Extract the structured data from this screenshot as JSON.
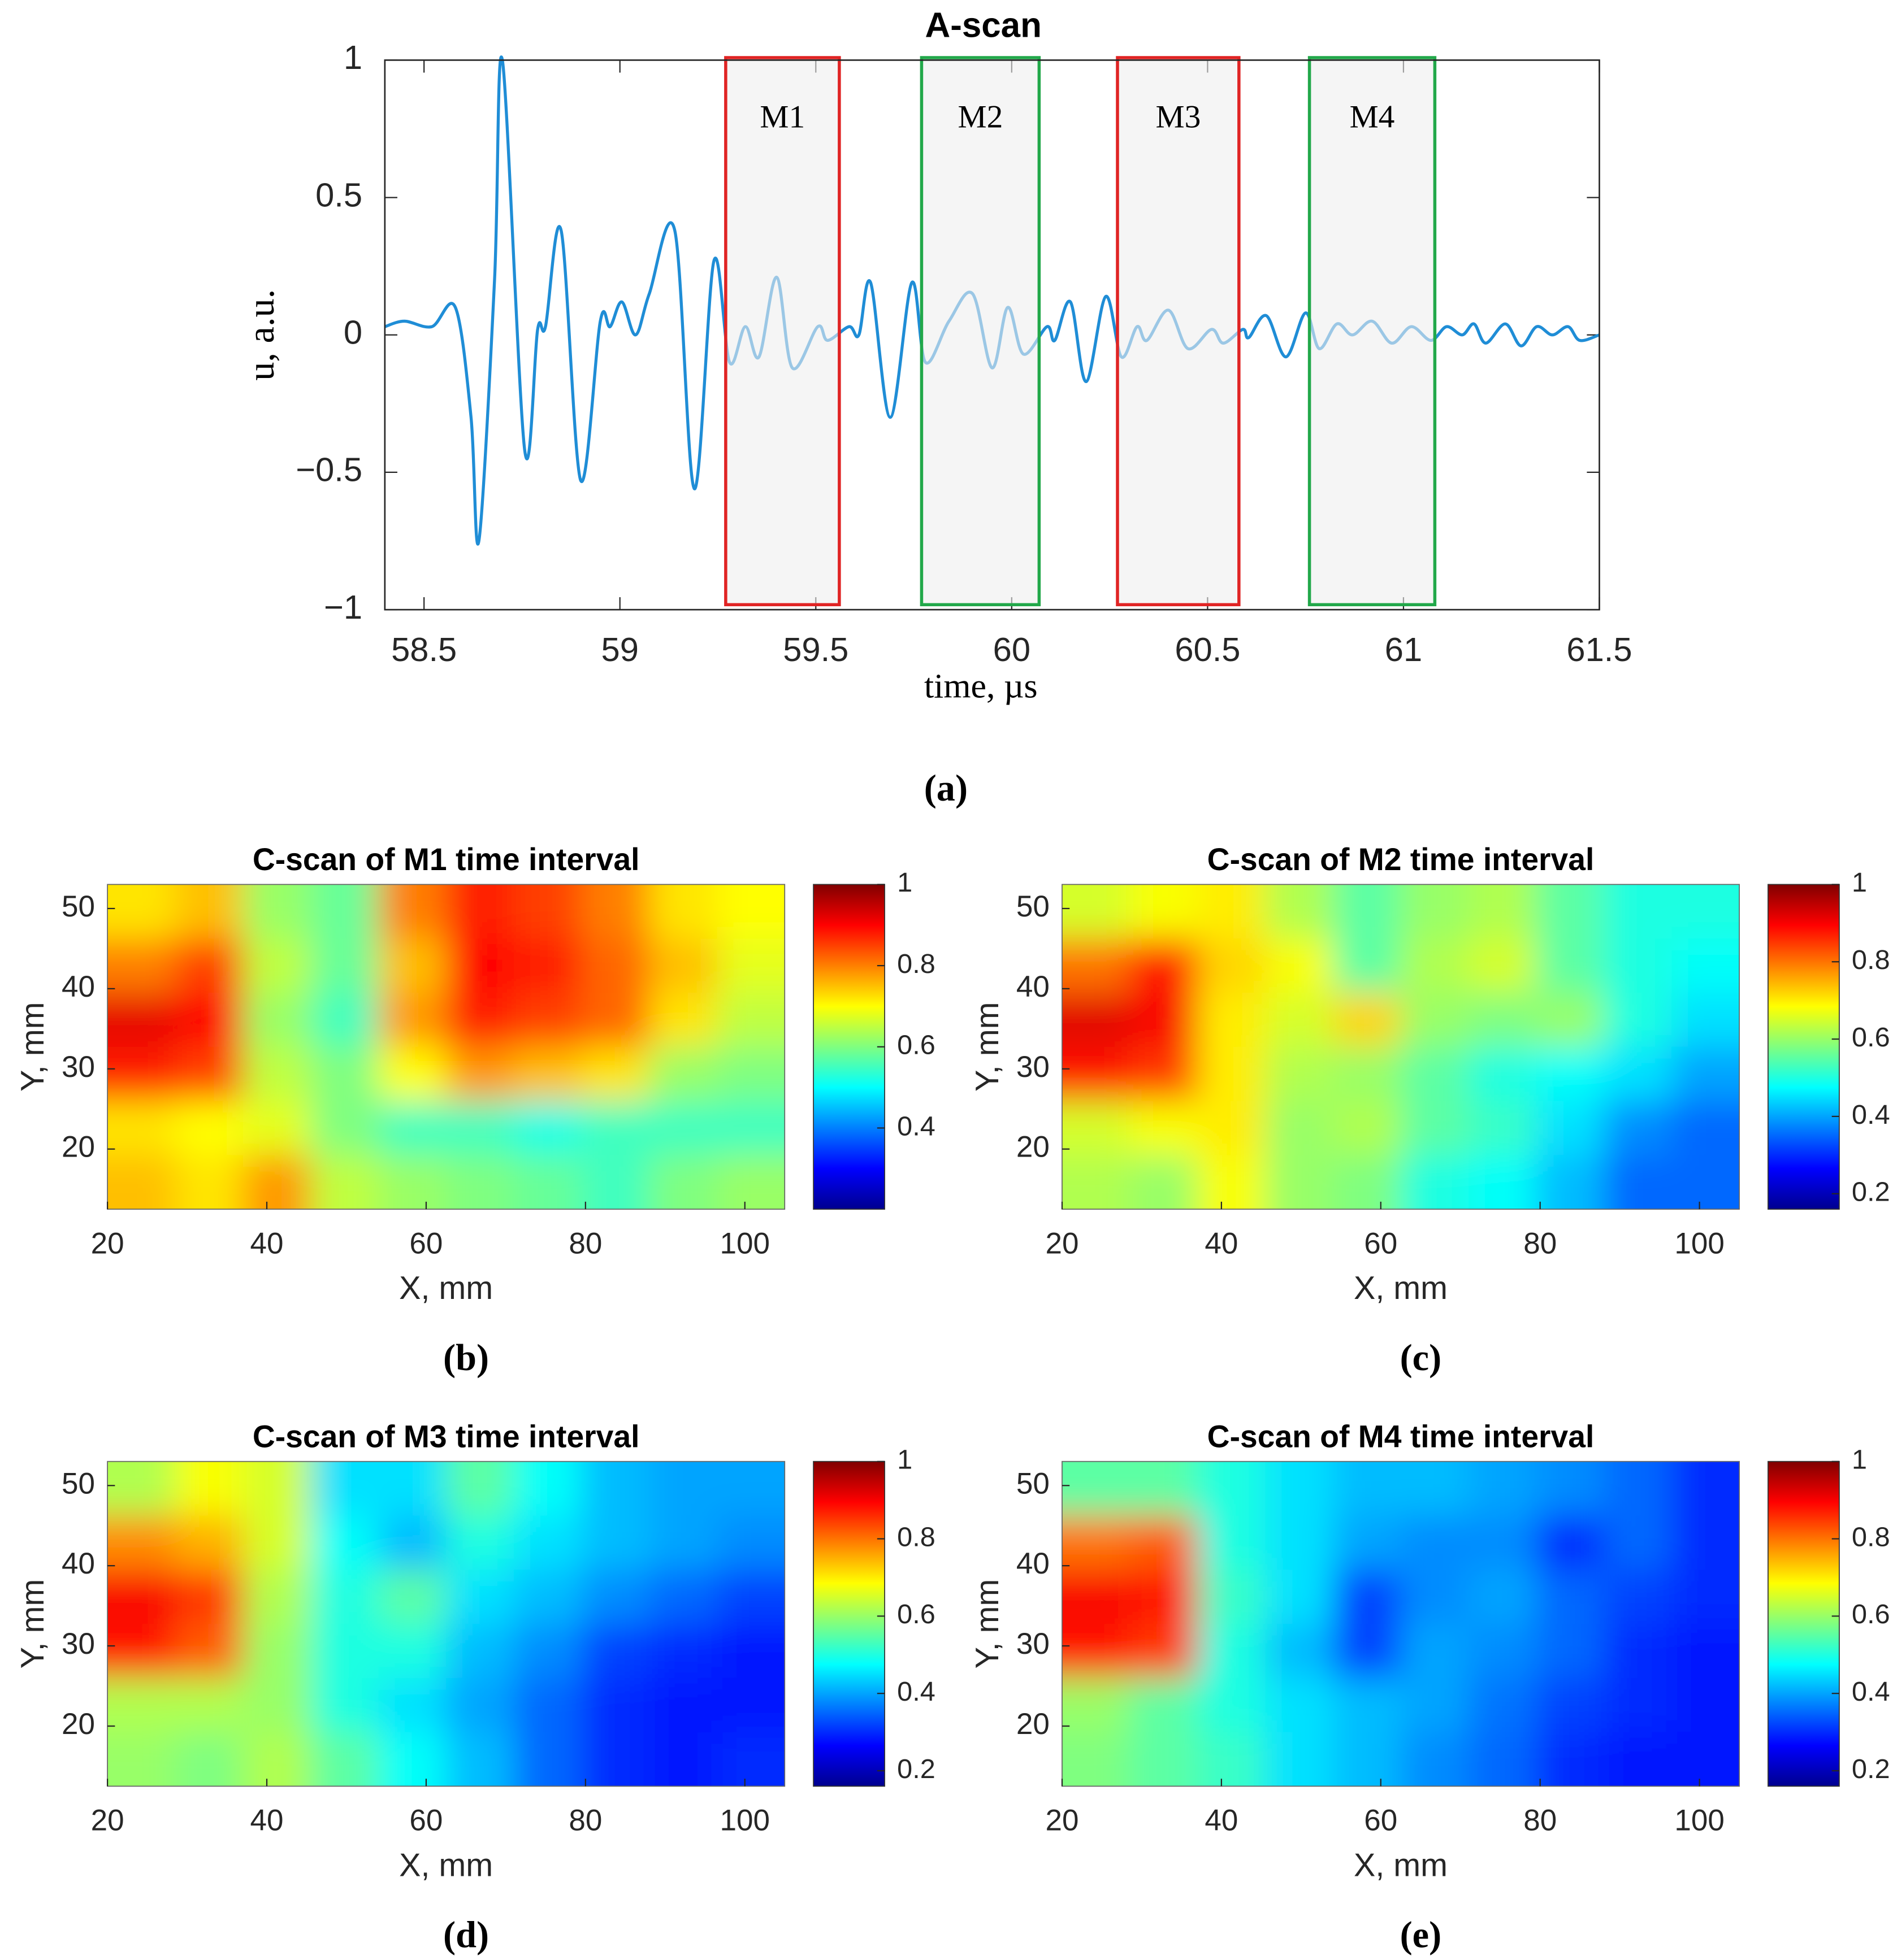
{
  "chart_data": [
    {
      "type": "line",
      "title": "A-scan",
      "label": "(a)",
      "xlabel": "time, µs",
      "ylabel": "u, a.u.",
      "color": "#1f8dd6",
      "xlim": [
        58.4,
        61.5
      ],
      "ylim": [
        -1,
        1
      ],
      "xticks": [
        58.5,
        59,
        59.5,
        60,
        60.5,
        61,
        61.5
      ],
      "yticks": [
        {
          "value": -1,
          "label": "−1"
        },
        {
          "value": -0.5,
          "label": "−0.5"
        },
        0,
        0.5,
        1
      ],
      "windows": [
        {
          "label": "M1",
          "x": [
            59.27,
            59.56
          ],
          "color": "#e02424"
        },
        {
          "label": "M2",
          "x": [
            59.77,
            60.07
          ],
          "color": "#22a84a"
        },
        {
          "label": "M3",
          "x": [
            60.27,
            60.58
          ],
          "color": "#e02424"
        },
        {
          "label": "M4",
          "x": [
            60.76,
            61.08
          ],
          "color": "#22a84a"
        }
      ],
      "x": [
        58.4,
        58.45,
        58.52,
        58.58,
        58.62,
        58.64,
        58.68,
        58.7,
        58.757,
        58.79,
        58.81,
        58.85,
        58.9,
        58.95,
        58.975,
        59.005,
        59.04,
        59.075,
        59.14,
        59.19,
        59.24,
        59.28,
        59.32,
        59.355,
        59.4,
        59.44,
        59.505,
        59.53,
        59.585,
        59.61,
        59.64,
        59.69,
        59.745,
        59.78,
        59.84,
        59.9,
        59.95,
        59.99,
        60.03,
        60.09,
        60.11,
        60.15,
        60.19,
        60.24,
        60.28,
        60.32,
        60.345,
        60.4,
        60.45,
        60.51,
        60.54,
        60.59,
        60.605,
        60.65,
        60.7,
        60.75,
        60.785,
        60.83,
        60.87,
        60.92,
        60.97,
        61.02,
        61.07,
        61.11,
        61.15,
        61.18,
        61.21,
        61.26,
        61.3,
        61.34,
        61.38,
        61.42,
        61.45,
        61.5
      ],
      "values": [
        0.03,
        0.05,
        0.03,
        0.1,
        -0.3,
        -0.75,
        0.2,
        1.0,
        -0.42,
        0.02,
        0.03,
        0.38,
        -0.53,
        0.05,
        0.03,
        0.12,
        0.0,
        0.15,
        0.38,
        -0.56,
        0.27,
        -0.1,
        0.03,
        -0.08,
        0.21,
        -0.12,
        0.03,
        -0.02,
        0.03,
        0.0,
        0.19,
        -0.3,
        0.19,
        -0.1,
        0.05,
        0.15,
        -0.12,
        0.1,
        -0.07,
        0.03,
        -0.02,
        0.12,
        -0.17,
        0.14,
        -0.08,
        0.03,
        -0.02,
        0.09,
        -0.05,
        0.02,
        -0.03,
        0.02,
        -0.01,
        0.07,
        -0.08,
        0.08,
        -0.05,
        0.04,
        0.0,
        0.05,
        -0.03,
        0.03,
        -0.02,
        0.03,
        0.0,
        0.04,
        -0.03,
        0.04,
        -0.04,
        0.03,
        0.0,
        0.03,
        -0.02,
        0.0
      ]
    },
    {
      "type": "heatmap",
      "title": "C-scan of M1 time interval",
      "label": "(b)",
      "xlabel": "X, mm",
      "ylabel": "Y, mm",
      "xlim": [
        20,
        105
      ],
      "ylim": [
        12.5,
        53
      ],
      "xticks": [
        20,
        40,
        60,
        80,
        100
      ],
      "yticks": [
        20,
        30,
        40,
        50
      ],
      "clim": [
        0.2,
        1
      ],
      "cticks": [
        0.4,
        0.6,
        0.8,
        1
      ],
      "z": [
        [
          0.72,
          0.75,
          0.62,
          0.58,
          0.8,
          0.88,
          0.85,
          0.8,
          0.72,
          0.7
        ],
        [
          0.8,
          0.85,
          0.65,
          0.58,
          0.75,
          0.9,
          0.88,
          0.82,
          0.75,
          0.68
        ],
        [
          0.92,
          0.9,
          0.62,
          0.55,
          0.78,
          0.88,
          0.85,
          0.82,
          0.72,
          0.65
        ],
        [
          0.88,
          0.85,
          0.65,
          0.6,
          0.7,
          0.78,
          0.75,
          0.72,
          0.62,
          0.6
        ],
        [
          0.72,
          0.7,
          0.68,
          0.6,
          0.55,
          0.55,
          0.52,
          0.55,
          0.55,
          0.55
        ],
        [
          0.75,
          0.72,
          0.78,
          0.65,
          0.62,
          0.6,
          0.58,
          0.55,
          0.6,
          0.62
        ]
      ]
    },
    {
      "type": "heatmap",
      "title": "C-scan of M2 time interval",
      "label": "(c)",
      "xlabel": "X, mm",
      "ylabel": "Y, mm",
      "xlim": [
        20,
        105
      ],
      "ylim": [
        12.5,
        53
      ],
      "xticks": [
        20,
        40,
        60,
        80,
        100
      ],
      "yticks": [
        20,
        30,
        40,
        50
      ],
      "clim": [
        0.16,
        1
      ],
      "cticks": [
        0.2,
        0.4,
        0.6,
        0.8,
        1
      ],
      "z": [
        [
          0.65,
          0.68,
          0.7,
          0.62,
          0.55,
          0.6,
          0.62,
          0.55,
          0.5,
          0.5
        ],
        [
          0.8,
          0.88,
          0.72,
          0.68,
          0.55,
          0.62,
          0.65,
          0.55,
          0.5,
          0.48
        ],
        [
          0.92,
          0.9,
          0.7,
          0.65,
          0.72,
          0.6,
          0.58,
          0.6,
          0.5,
          0.45
        ],
        [
          0.88,
          0.85,
          0.7,
          0.62,
          0.6,
          0.55,
          0.5,
          0.48,
          0.45,
          0.4
        ],
        [
          0.65,
          0.68,
          0.7,
          0.6,
          0.62,
          0.55,
          0.52,
          0.45,
          0.38,
          0.35
        ],
        [
          0.62,
          0.6,
          0.68,
          0.6,
          0.58,
          0.5,
          0.48,
          0.42,
          0.35,
          0.35
        ]
      ]
    },
    {
      "type": "heatmap",
      "title": "C-scan of M3 time interval",
      "label": "(d)",
      "xlabel": "X, mm",
      "ylabel": "Y, mm",
      "xlim": [
        20,
        105
      ],
      "ylim": [
        12.5,
        53
      ],
      "xticks": [
        20,
        40,
        60,
        80,
        100
      ],
      "yticks": [
        20,
        30,
        40,
        50
      ],
      "clim": [
        0.16,
        1
      ],
      "cticks": [
        0.2,
        0.4,
        0.6,
        0.8,
        1
      ],
      "z": [
        [
          0.62,
          0.68,
          0.65,
          0.45,
          0.45,
          0.55,
          0.48,
          0.42,
          0.4,
          0.4
        ],
        [
          0.78,
          0.75,
          0.65,
          0.48,
          0.42,
          0.5,
          0.45,
          0.42,
          0.4,
          0.38
        ],
        [
          0.9,
          0.85,
          0.62,
          0.5,
          0.55,
          0.45,
          0.42,
          0.38,
          0.35,
          0.32
        ],
        [
          0.88,
          0.82,
          0.6,
          0.5,
          0.5,
          0.42,
          0.38,
          0.32,
          0.3,
          0.28
        ],
        [
          0.62,
          0.62,
          0.6,
          0.5,
          0.45,
          0.4,
          0.35,
          0.3,
          0.28,
          0.28
        ],
        [
          0.6,
          0.58,
          0.62,
          0.55,
          0.48,
          0.42,
          0.35,
          0.3,
          0.28,
          0.3
        ]
      ]
    },
    {
      "type": "heatmap",
      "title": "C-scan of M4 time interval",
      "label": "(e)",
      "xlabel": "X, mm",
      "ylabel": "Y, mm",
      "xlim": [
        20,
        105
      ],
      "ylim": [
        12.5,
        53
      ],
      "xticks": [
        20,
        40,
        60,
        80,
        100
      ],
      "yticks": [
        20,
        30,
        40,
        50
      ],
      "clim": [
        0.16,
        1
      ],
      "cticks": [
        0.2,
        0.4,
        0.6,
        0.8,
        1
      ],
      "z": [
        [
          0.55,
          0.55,
          0.5,
          0.45,
          0.42,
          0.42,
          0.4,
          0.38,
          0.35,
          0.3
        ],
        [
          0.8,
          0.82,
          0.5,
          0.45,
          0.4,
          0.38,
          0.38,
          0.3,
          0.35,
          0.3
        ],
        [
          0.9,
          0.88,
          0.52,
          0.45,
          0.32,
          0.38,
          0.4,
          0.35,
          0.32,
          0.3
        ],
        [
          0.88,
          0.85,
          0.5,
          0.42,
          0.32,
          0.4,
          0.38,
          0.35,
          0.3,
          0.28
        ],
        [
          0.6,
          0.55,
          0.5,
          0.45,
          0.42,
          0.4,
          0.36,
          0.32,
          0.3,
          0.28
        ],
        [
          0.58,
          0.55,
          0.52,
          0.45,
          0.42,
          0.38,
          0.35,
          0.3,
          0.28,
          0.28
        ]
      ]
    }
  ]
}
